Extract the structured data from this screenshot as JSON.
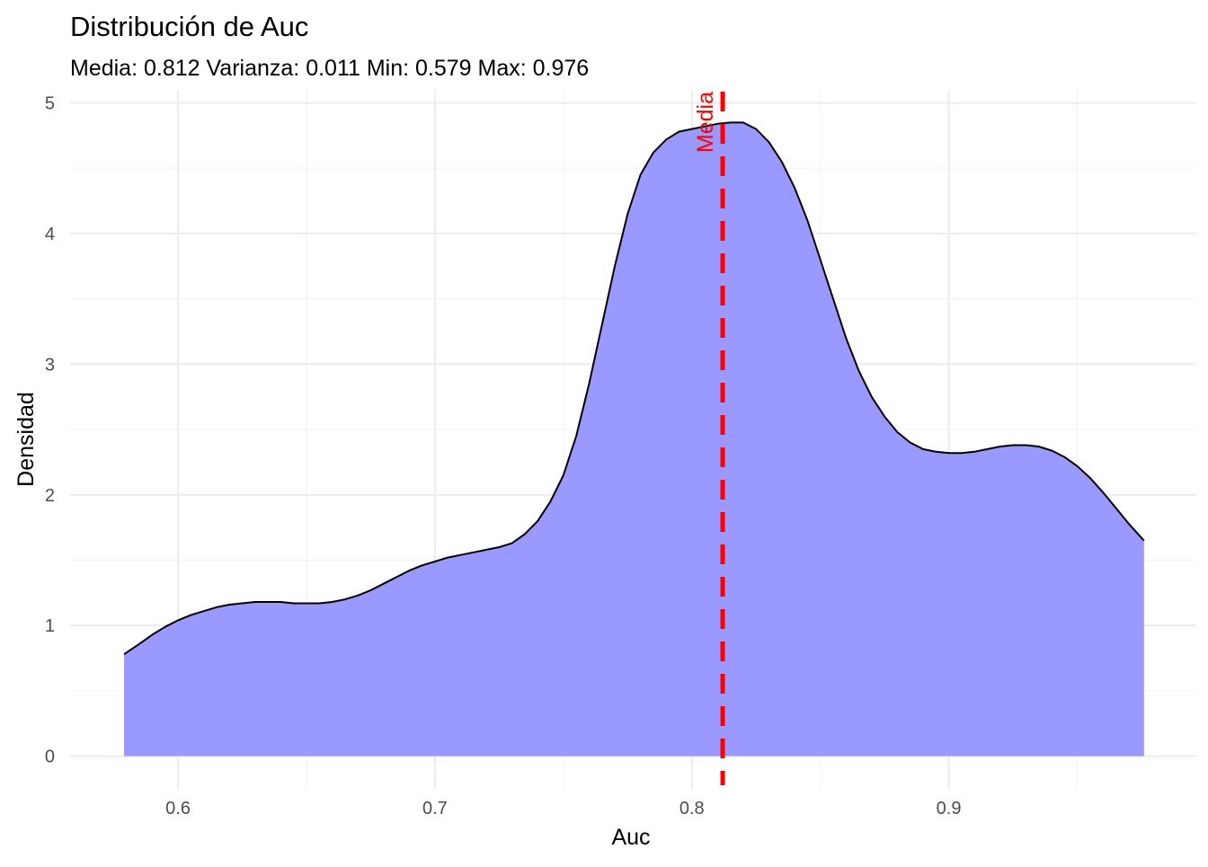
{
  "chart_data": {
    "type": "area",
    "title": "Distribución de Auc",
    "subtitle": "Media: 0.812 Varianza: 0.011 Min: 0.579 Max: 0.976",
    "xlabel": "Auc",
    "ylabel": "Densidad",
    "xlim": [
      0.558,
      0.996
    ],
    "ylim": [
      -0.25,
      5.1
    ],
    "x_ticks": [
      0.6,
      0.7,
      0.8,
      0.9
    ],
    "x_tick_labels": [
      "0.6",
      "0.7",
      "0.8",
      "0.9"
    ],
    "y_ticks": [
      0,
      1,
      2,
      3,
      4,
      5
    ],
    "y_tick_labels": [
      "0",
      "1",
      "2",
      "3",
      "4",
      "5"
    ],
    "grid": true,
    "series": [
      {
        "x": [
          0.579,
          0.585,
          0.59,
          0.595,
          0.6,
          0.605,
          0.61,
          0.615,
          0.62,
          0.625,
          0.63,
          0.635,
          0.64,
          0.645,
          0.65,
          0.655,
          0.66,
          0.665,
          0.67,
          0.675,
          0.68,
          0.685,
          0.69,
          0.695,
          0.7,
          0.705,
          0.71,
          0.715,
          0.72,
          0.725,
          0.73,
          0.735,
          0.74,
          0.745,
          0.75,
          0.755,
          0.76,
          0.765,
          0.77,
          0.775,
          0.78,
          0.785,
          0.79,
          0.795,
          0.8,
          0.805,
          0.81,
          0.815,
          0.82,
          0.825,
          0.83,
          0.835,
          0.84,
          0.845,
          0.85,
          0.855,
          0.86,
          0.865,
          0.87,
          0.875,
          0.88,
          0.885,
          0.89,
          0.895,
          0.9,
          0.905,
          0.91,
          0.915,
          0.92,
          0.925,
          0.93,
          0.935,
          0.94,
          0.945,
          0.95,
          0.955,
          0.96,
          0.965,
          0.97,
          0.976
        ],
        "y": [
          0.78,
          0.86,
          0.93,
          0.99,
          1.04,
          1.08,
          1.11,
          1.14,
          1.16,
          1.17,
          1.18,
          1.18,
          1.18,
          1.17,
          1.17,
          1.17,
          1.18,
          1.2,
          1.23,
          1.27,
          1.32,
          1.37,
          1.42,
          1.46,
          1.49,
          1.52,
          1.54,
          1.56,
          1.58,
          1.6,
          1.63,
          1.7,
          1.8,
          1.95,
          2.15,
          2.45,
          2.85,
          3.3,
          3.75,
          4.15,
          4.45,
          4.62,
          4.72,
          4.78,
          4.8,
          4.82,
          4.84,
          4.85,
          4.85,
          4.8,
          4.7,
          4.55,
          4.35,
          4.1,
          3.8,
          3.5,
          3.2,
          2.95,
          2.75,
          2.6,
          2.48,
          2.4,
          2.35,
          2.33,
          2.32,
          2.32,
          2.33,
          2.35,
          2.37,
          2.38,
          2.38,
          2.37,
          2.34,
          2.29,
          2.22,
          2.13,
          2.02,
          1.9,
          1.78,
          1.65
        ]
      }
    ],
    "fill_color": "#9999ff",
    "line_color": "#000000",
    "mean_line": {
      "x": 0.812,
      "label": "Media",
      "color": "#ff0000",
      "style": "dashed"
    }
  }
}
